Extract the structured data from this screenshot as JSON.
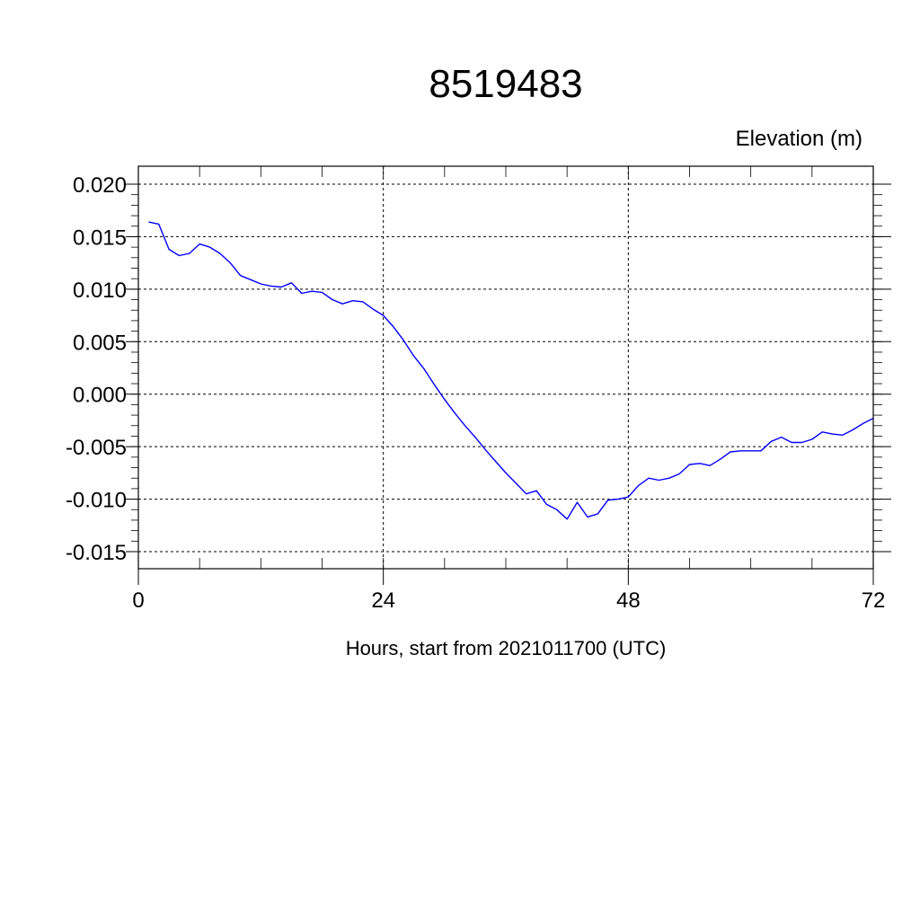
{
  "chart_data": {
    "type": "line",
    "title": "8519483",
    "subtitle": "Elevation (m)",
    "xlabel": "Hours, start from 2021011700 (UTC)",
    "ylabel": "",
    "xlim": [
      0,
      72
    ],
    "ylim": [
      -0.015,
      0.02
    ],
    "x_ticks": [
      0,
      24,
      48,
      72
    ],
    "x_tick_labels": [
      "0",
      "24",
      "48",
      "72"
    ],
    "y_ticks": [
      -0.015,
      -0.01,
      -0.005,
      0.0,
      0.005,
      0.01,
      0.015,
      0.02
    ],
    "y_tick_labels": [
      "-0.015",
      "-0.010",
      "-0.005",
      "0.000",
      "0.005",
      "0.010",
      "0.015",
      "0.020"
    ],
    "grid": true,
    "line_color": "#0000ff",
    "series": [
      {
        "x": [
          1,
          2,
          3,
          4,
          5,
          6,
          7,
          8,
          9,
          10,
          11,
          12,
          13,
          14,
          15,
          16,
          17,
          18,
          19,
          20,
          21,
          22,
          23,
          24,
          25,
          26,
          27,
          28,
          29,
          30,
          31,
          32,
          33,
          34,
          35,
          36,
          37,
          38,
          39,
          40,
          41,
          42,
          43,
          44,
          45,
          46,
          47,
          48,
          49,
          50,
          51,
          52,
          53,
          54,
          55,
          56,
          57,
          58,
          59,
          60,
          61,
          62,
          63,
          64,
          65,
          66,
          67,
          68,
          69,
          70,
          71,
          72
        ],
        "y": [
          0.0164,
          0.0162,
          0.0138,
          0.0132,
          0.0134,
          0.0143,
          0.014,
          0.0134,
          0.0125,
          0.0113,
          0.0109,
          0.0105,
          0.0103,
          0.0102,
          0.0106,
          0.0096,
          0.0098,
          0.0097,
          0.009,
          0.0086,
          0.0089,
          0.0088,
          0.0081,
          0.0075,
          0.0064,
          0.0051,
          0.0036,
          0.0024,
          0.0009,
          -0.0005,
          -0.0018,
          -0.003,
          -0.0041,
          -0.0053,
          -0.0064,
          -0.0075,
          -0.0085,
          -0.0095,
          -0.0092,
          -0.0105,
          -0.011,
          -0.0119,
          -0.0103,
          -0.0117,
          -0.0114,
          -0.0101,
          -0.01,
          -0.0098,
          -0.0087,
          -0.008,
          -0.0082,
          -0.008,
          -0.0076,
          -0.0067,
          -0.0066,
          -0.0068,
          -0.0062,
          -0.0055,
          -0.0054,
          -0.0054,
          -0.0054,
          -0.0045,
          -0.0041,
          -0.0046,
          -0.0046,
          -0.0043,
          -0.0036,
          -0.0038,
          -0.0039,
          -0.0034,
          -0.0028,
          -0.0023
        ]
      }
    ]
  }
}
